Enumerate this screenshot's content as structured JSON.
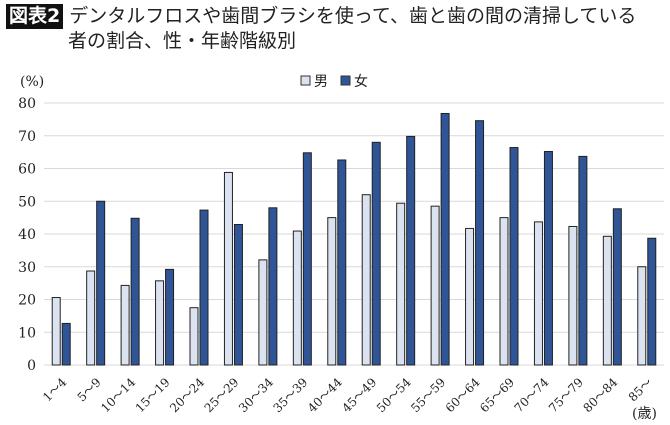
{
  "header": {
    "badge": "図表2",
    "title_line1": "デンタルフロスや歯間ブラシを使って、歯と歯の間の清掃している",
    "title_line2": "者の割合、性・年齢階級別"
  },
  "chart_data": {
    "type": "bar",
    "title": "デンタルフロスや歯間ブラシを使って、歯と歯の間の清掃している者の割合、性・年齢階級別",
    "ylabel": "(%)",
    "xlabel": "(歳)",
    "ylim": [
      0,
      80
    ],
    "yticks": [
      "0",
      "10",
      "20",
      "30",
      "40",
      "50",
      "60",
      "70",
      "80"
    ],
    "grid": true,
    "legend_position": "top-center",
    "categories": [
      "1～4",
      "5～9",
      "10～14",
      "15～19",
      "20～24",
      "25～29",
      "30～34",
      "35～39",
      "40～44",
      "45～49",
      "50～54",
      "55～59",
      "60～64",
      "65～69",
      "70～74",
      "75～79",
      "80～84",
      "85～"
    ],
    "series": [
      {
        "name": "男",
        "color": "#dce3f0",
        "values": [
          20.6,
          28.7,
          24.3,
          25.7,
          17.5,
          58.8,
          32.1,
          40.9,
          45.0,
          52.0,
          49.4,
          48.5,
          41.7,
          45.0,
          43.7,
          42.3,
          39.3,
          30.0
        ]
      },
      {
        "name": "女",
        "color": "#2f5597",
        "values": [
          12.7,
          50.0,
          44.8,
          29.2,
          47.3,
          42.9,
          48.0,
          64.8,
          62.6,
          68.0,
          69.8,
          76.8,
          74.6,
          66.4,
          65.2,
          63.7,
          47.7,
          38.7
        ]
      }
    ]
  }
}
